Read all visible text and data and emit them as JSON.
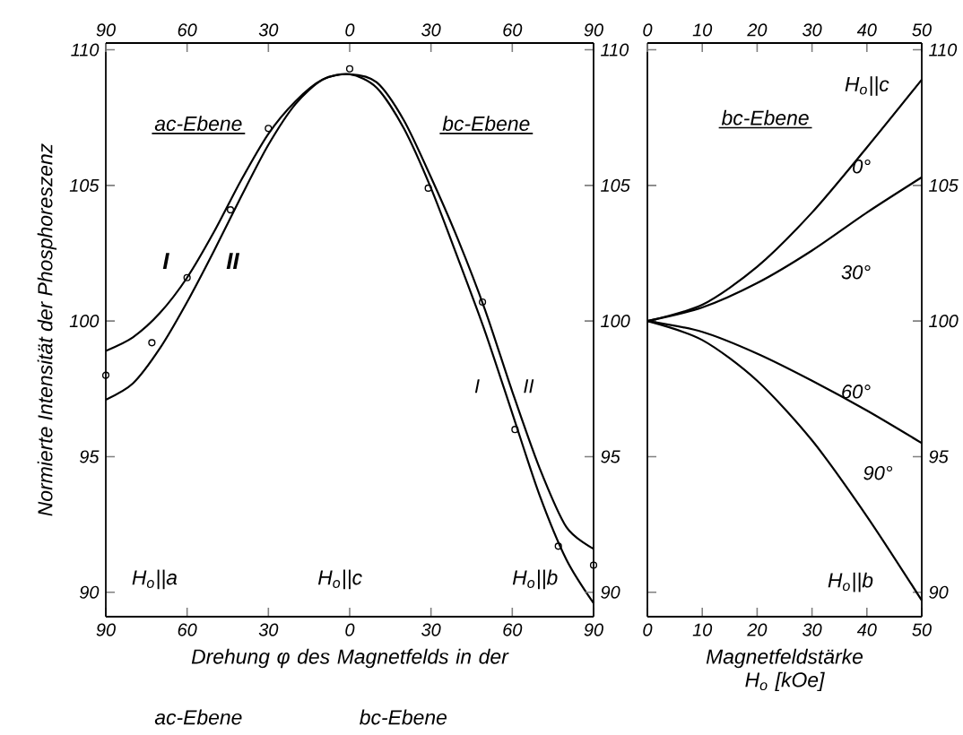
{
  "chart_data": [
    {
      "type": "line",
      "ylabel": "Normierte Intensität der Phosphoreszenz",
      "xlabel": "Drehung φ des Magnetfelds in der",
      "xlim": [
        -90,
        90
      ],
      "xticks": [
        {
          "value": -90,
          "label": "90"
        },
        {
          "value": -60,
          "label": "60"
        },
        {
          "value": -30,
          "label": "30"
        },
        0,
        30,
        60,
        90
      ],
      "x2lim": [
        -90,
        90
      ],
      "x2ticks": [
        {
          "value": -90,
          "label": "90"
        },
        {
          "value": -60,
          "label": "60"
        },
        {
          "value": -30,
          "label": "30"
        },
        0,
        30,
        60,
        90
      ],
      "ylim": [
        89.1,
        110.25
      ],
      "yticks": [
        90,
        95,
        100,
        105,
        110
      ],
      "y2lim": [
        89.1,
        110.25
      ],
      "y2ticks": [
        90,
        95,
        100,
        105,
        110
      ],
      "series": [
        {
          "name": "I",
          "color": "#000000",
          "x": [
            -90,
            -80,
            -70,
            -60,
            -50,
            -40,
            -30,
            -20,
            -10,
            0,
            10,
            20,
            30,
            40,
            50,
            60,
            70,
            80,
            90
          ],
          "values": [
            98.9,
            99.4,
            100.3,
            101.6,
            103.3,
            105.2,
            106.9,
            108.1,
            108.9,
            109.1,
            108.6,
            107.1,
            104.9,
            102.3,
            99.6,
            96.6,
            93.6,
            91.2,
            89.6
          ]
        },
        {
          "name": "II",
          "color": "#000000",
          "x": [
            -90,
            -80,
            -70,
            -60,
            -50,
            -40,
            -30,
            -20,
            -10,
            0,
            10,
            20,
            30,
            40,
            50,
            60,
            70,
            80,
            90
          ],
          "values": [
            97.1,
            97.7,
            99.0,
            100.7,
            102.6,
            104.6,
            106.5,
            108.0,
            108.9,
            109.1,
            108.8,
            107.4,
            105.3,
            103.0,
            100.4,
            97.4,
            94.6,
            92.4,
            91.6
          ]
        },
        {
          "type": "scatter",
          "marker": "circle",
          "color": "#000000",
          "x": [
            -90,
            -73,
            -60,
            -44,
            -30,
            0,
            29,
            49,
            61,
            77,
            90
          ],
          "values": [
            98.0,
            99.2,
            101.6,
            104.1,
            107.1,
            109.3,
            104.9,
            100.7,
            96.0,
            91.7,
            91.0
          ]
        }
      ],
      "annotations": [
        "ac-Ebene",
        "bc-Ebene",
        "I",
        "II",
        "H$_{o}$||a",
        "H$_{o}$||c",
        "H$_{o}$||b",
        "ac-Ebene",
        "bc-Ebene"
      ]
    },
    {
      "type": "line",
      "xlabel": "Magnetfeldstärke H$_{o}$ [kOe]",
      "xlim": [
        0,
        50
      ],
      "xticks": [
        0,
        10,
        20,
        30,
        40,
        50
      ],
      "x2lim": [
        0,
        50
      ],
      "x2ticks": [
        0,
        10,
        20,
        30,
        40,
        50
      ],
      "y2lim": [
        89.1,
        110.25
      ],
      "y2ticks": [
        90,
        95,
        100,
        105,
        110
      ],
      "series": [
        {
          "name": "0°",
          "axis": "y2",
          "color": "#000000",
          "x": [
            0,
            10,
            20,
            30,
            40,
            50
          ],
          "values": [
            100,
            100.6,
            102.0,
            104.0,
            106.4,
            108.9
          ]
        },
        {
          "name": "30°",
          "axis": "y2",
          "color": "#000000",
          "x": [
            0,
            10,
            20,
            30,
            40,
            50
          ],
          "values": [
            100,
            100.5,
            101.4,
            102.6,
            104.0,
            105.3
          ]
        },
        {
          "name": "60°",
          "axis": "y2",
          "color": "#000000",
          "x": [
            0,
            10,
            20,
            30,
            40,
            50
          ],
          "values": [
            100,
            99.6,
            98.8,
            97.8,
            96.7,
            95.5
          ]
        },
        {
          "name": "90°",
          "axis": "y2",
          "color": "#000000",
          "x": [
            0,
            10,
            20,
            30,
            40,
            50
          ],
          "values": [
            100,
            99.3,
            97.8,
            95.6,
            92.8,
            89.7
          ]
        }
      ],
      "annotations": [
        "bc-Ebene",
        "H$_{o}$||c",
        "H$_{o}$||b"
      ]
    }
  ]
}
